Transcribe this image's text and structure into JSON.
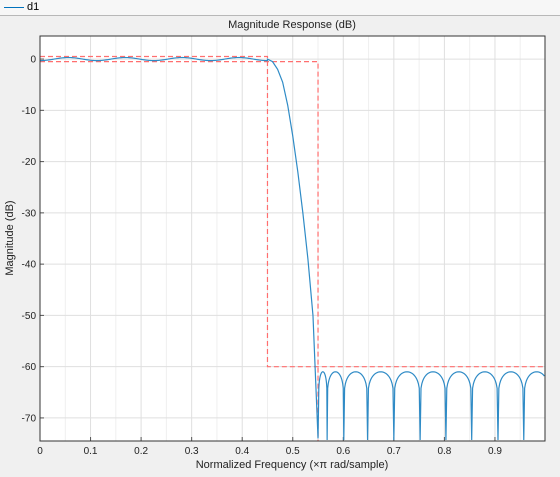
{
  "legend": {
    "entries": [
      {
        "name": "d1",
        "color": "#0072bd"
      }
    ]
  },
  "colors": {
    "background": "#f0f0f0",
    "axes_background": "#ffffff",
    "grid": "#dfdfdf",
    "response": "#2f8bc6",
    "mask": "#ff6f6f"
  },
  "chart_data": {
    "type": "line",
    "title": "Magnitude Response (dB)",
    "xlabel": "Normalized Frequency (×π rad/sample)",
    "ylabel": "Magnitude (dB)",
    "xlim": [
      0,
      0.999
    ],
    "ylim": [
      -74.5,
      4.5
    ],
    "grid": true,
    "x_ticks": [
      0,
      0.1,
      0.2,
      0.3,
      0.4,
      0.5,
      0.6,
      0.7,
      0.8,
      0.9
    ],
    "x_tick_labels": [
      "0",
      "0.1",
      "0.2",
      "0.3",
      "0.4",
      "0.5",
      "0.6",
      "0.7",
      "0.8",
      "0.9"
    ],
    "y_ticks": [
      0,
      -10,
      -20,
      -30,
      -40,
      -50,
      -60,
      -70
    ],
    "y_tick_labels": [
      "0",
      "-10",
      "-20",
      "-30",
      "-40",
      "-50",
      "-60",
      "-70"
    ],
    "series": [
      {
        "name": "d1",
        "style": "solid",
        "passband": {
          "x_end": 0.45,
          "ripple_db": 0.6,
          "ripple_cycles": 4
        },
        "transition": {
          "x": [
            0.45,
            0.46,
            0.47,
            0.48,
            0.49,
            0.5,
            0.51,
            0.52,
            0.53,
            0.54,
            0.55
          ],
          "y": [
            0,
            -0.5,
            -2,
            -4.5,
            -9,
            -15,
            -22,
            -30,
            -39,
            -50,
            -74
          ]
        },
        "stopband": {
          "x_start": 0.55,
          "peak_db": -61,
          "notch_db": -74.5,
          "nulls": [
            0.551,
            0.568,
            0.601,
            0.648,
            0.7,
            0.752,
            0.803,
            0.854,
            0.906,
            0.957,
            1.008
          ]
        }
      }
    ],
    "mask": {
      "style": "dashed",
      "passband_upper": {
        "x": [
          0,
          0.45
        ],
        "y": 0.5
      },
      "passband_lower": {
        "x": [
          0,
          0.55
        ],
        "y": -0.5
      },
      "stopband": {
        "x": [
          0.45,
          0.999
        ],
        "y": -60
      },
      "edges": [
        0.45,
        0.55
      ]
    }
  }
}
